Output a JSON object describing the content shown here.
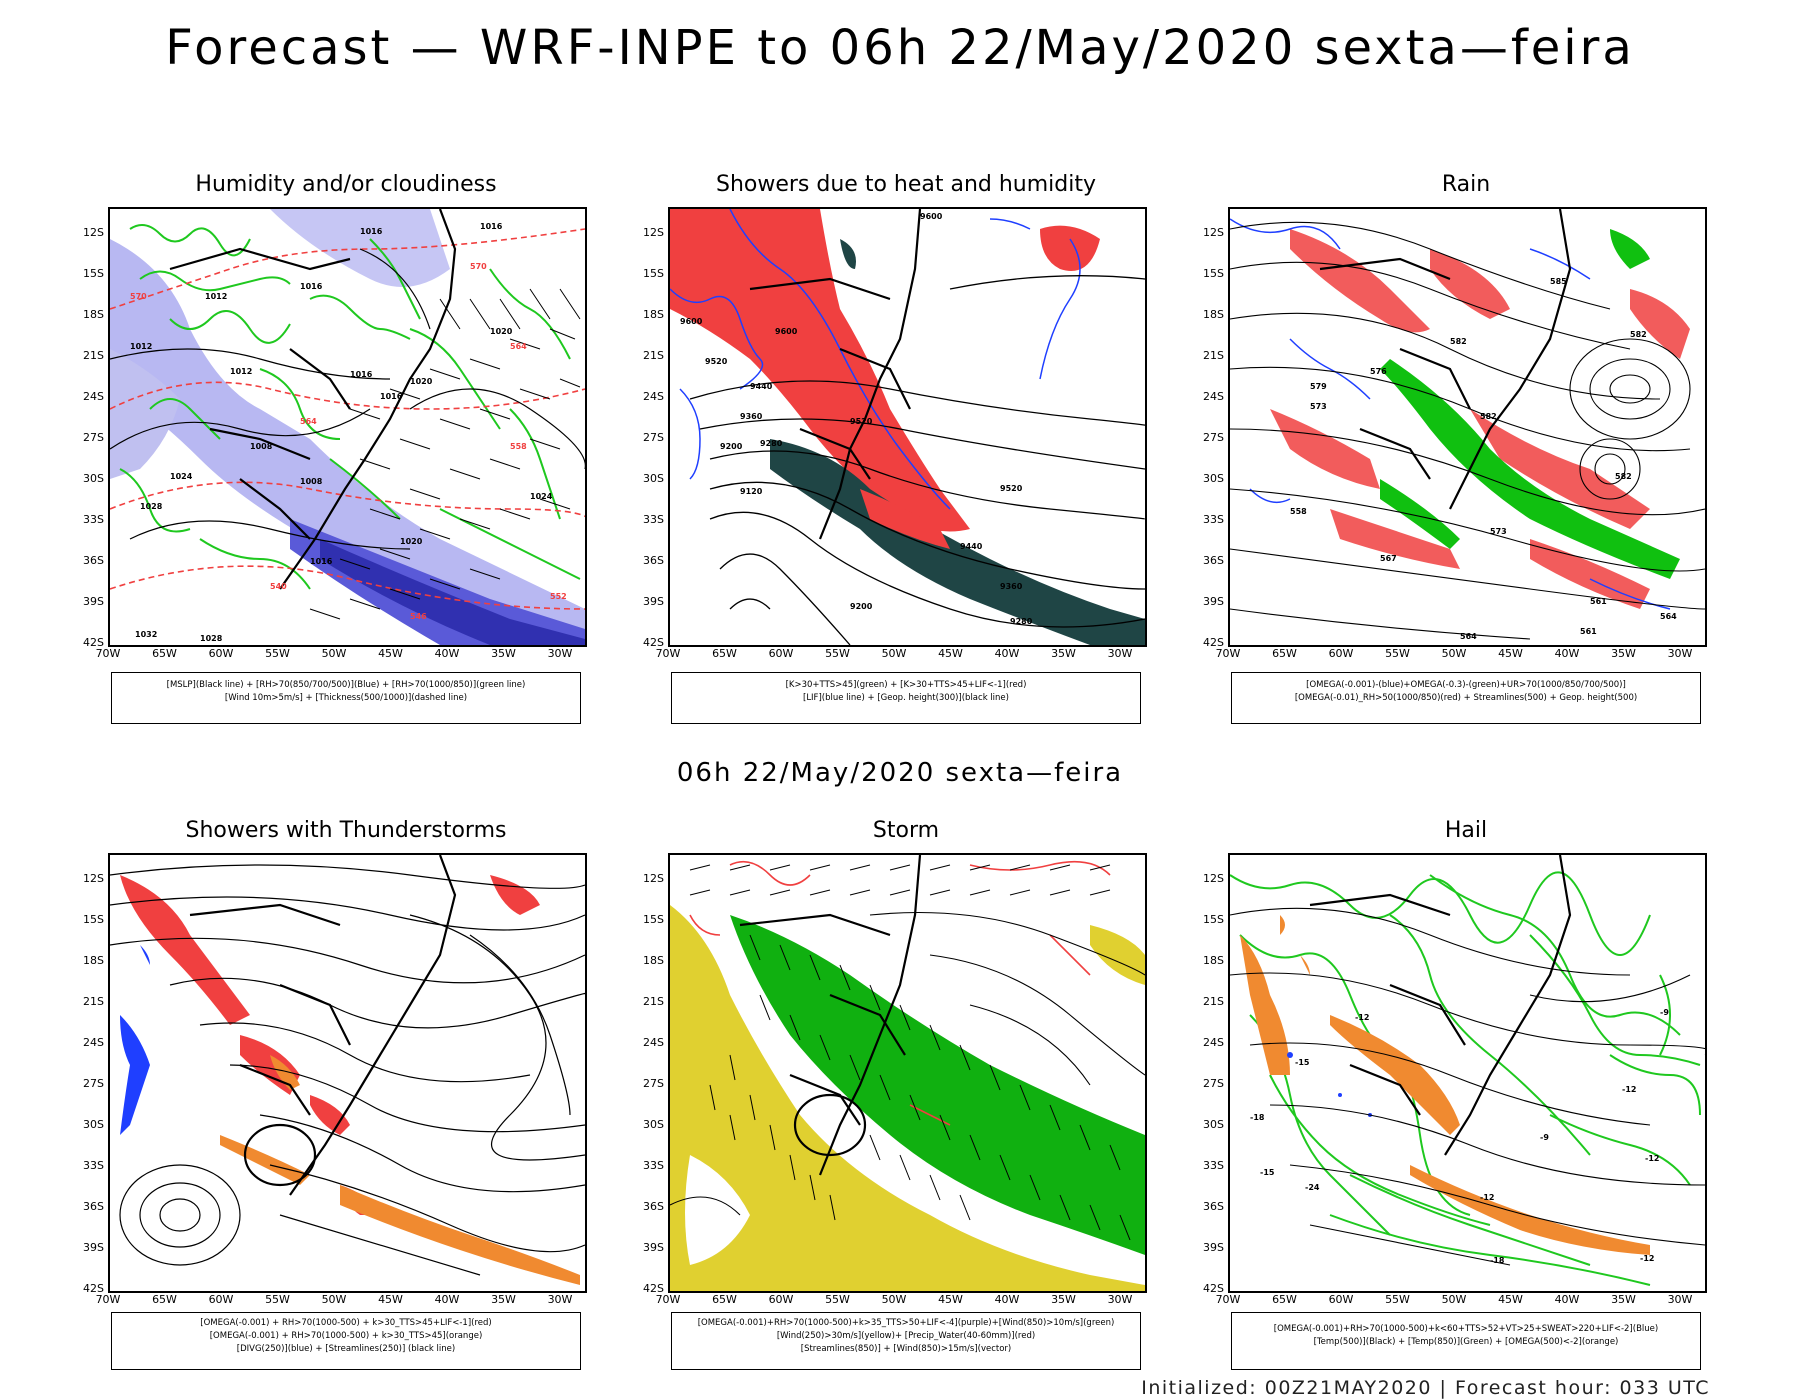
{
  "title": "Forecast — WRF-INPE to 06h 22/May/2020 sexta—feira",
  "subtitle": "06h 22/May/2020 sexta—feira",
  "footer": "Initialized: 00Z21MAY2020 | Forecast hour: 033 UTC",
  "lat_labels": [
    "12S",
    "15S",
    "18S",
    "21S",
    "24S",
    "27S",
    "30S",
    "33S",
    "36S",
    "39S",
    "42S"
  ],
  "lon_labels": [
    "70W",
    "65W",
    "60W",
    "55W",
    "50W",
    "45W",
    "40W",
    "35W",
    "30W"
  ],
  "panels": [
    {
      "title": "Humidity and/or cloudiness",
      "legend": [
        "[MSLP](Black line) + [RH>70(850/700/500)](Blue) + [RH>70(1000/850)](green line)",
        "[Wind 10m>5m/s] + [Thickness(500/1000)](dashed line)"
      ],
      "contour_labels": [
        "1016",
        "1016",
        "1012",
        "1016",
        "1020",
        "1024",
        "1012",
        "1016",
        "1020",
        "1016",
        "1012",
        "1008",
        "1008",
        "1016",
        "1020",
        "1028",
        "1032",
        "1028",
        "1024",
        "570",
        "570",
        "564",
        "558",
        "552",
        "546",
        "540",
        "564"
      ]
    },
    {
      "title": "Showers due to heat and humidity",
      "legend": [
        "[K>30+TTS>45](green) + [K>30+TTS>45+LIF<-1](red)",
        "[LIF](blue line) + [Geop. height(300)](black line)"
      ],
      "contour_labels": [
        "9600",
        "9600",
        "9600",
        "9520",
        "9440",
        "9360",
        "9280",
        "9200",
        "9120",
        "9520",
        "9440",
        "9360",
        "9280",
        "9200",
        "9520"
      ]
    },
    {
      "title": "Rain",
      "legend": [
        "[OMEGA(-0.001)-(blue)+OMEGA(-0.3)-(green)+UR>70(1000/850/700/500)]",
        "[OMEGA(-0.01)_RH>50(1000/850)(red) + Streamlines(500) + Geop. height(500)"
      ],
      "contour_labels": [
        "582",
        "585",
        "582",
        "576",
        "579",
        "573",
        "582",
        "582",
        "573",
        "567",
        "561",
        "564",
        "558",
        "561",
        "564"
      ]
    },
    {
      "title": "Showers with Thunderstorms",
      "legend": [
        "[OMEGA(-0.001) + RH>70(1000-500) + k>30_TTS>45+LIF<-1](red)",
        "[OMEGA(-0.001) + RH>70(1000-500) + k>30_TTS>45](orange)",
        "[DIVG(250)](blue) + [Streamlines(250)] (black line)"
      ],
      "contour_labels": []
    },
    {
      "title": "Storm",
      "legend": [
        "[OMEGA(-0.001)+RH>70(1000-500)+k>35_TTS>50+LIF<-4](purple)+[Wind(850)>10m/s](green)",
        "[Wind(250)>30m/s](yellow)+ [Precip_Water(40-60mm)](red)",
        "[Streamlines(850)] + [Wind(850)>15m/s](vector)"
      ],
      "contour_labels": []
    },
    {
      "title": "Hail",
      "legend": [
        "[OMEGA(-0.001)+RH>70(1000-500)+k<60+TTS>52+VT>25+SWEAT>220+LIF<-2](Blue)",
        "[Temp(500)](Black) + [Temp(850)](Green) + [OMEGA(500)<-2](orange)"
      ],
      "contour_labels": [
        "-12",
        "-15",
        "-18",
        "-24",
        "-12",
        "-9",
        "-12",
        "-12",
        "-18",
        "-15",
        "-9",
        "-12"
      ]
    }
  ],
  "colors": {
    "blue_rh": "#a9a9f0",
    "blue_line": "#1f3fff",
    "green": "#1fc81f",
    "green_fill": "#10b010",
    "red": "#f04040",
    "orange": "#f08a30",
    "dark_teal": "#1f4545",
    "yellow": "#e0d030",
    "dark_blue_band": "#4040c8"
  }
}
